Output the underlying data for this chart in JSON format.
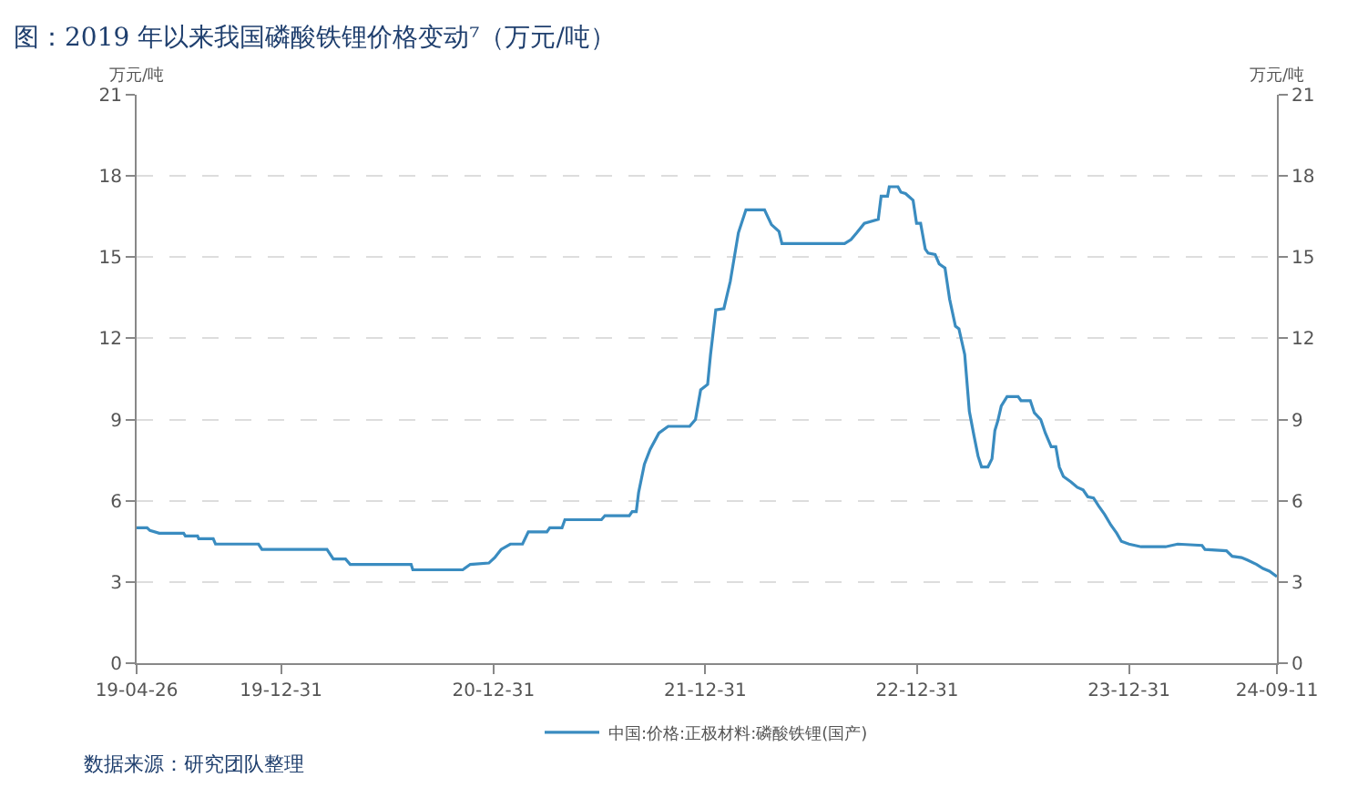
{
  "chart_data": {
    "type": "line",
    "title": "图：2019 年以来我国磷酸铁锂价格变动⁷（万元/吨）",
    "ylabel": "万元/吨",
    "y2label": "万元/吨",
    "x": [
      "2019-04-26",
      "2019-05-14",
      "2019-05-19",
      "2019-06-04",
      "2019-07-16",
      "2019-07-19",
      "2019-08-09",
      "2019-08-11",
      "2019-09-05",
      "2019-09-09",
      "2019-11-22",
      "2019-11-28",
      "2019-12-15",
      "2020-03-19",
      "2020-03-30",
      "2020-04-20",
      "2020-04-28",
      "2020-08-11",
      "2020-08-14",
      "2020-11-08",
      "2020-11-21",
      "2020-12-23",
      "2021-01-02",
      "2021-01-13",
      "2021-01-29",
      "2021-02-19",
      "2021-03-01",
      "2021-04-02",
      "2021-04-07",
      "2021-04-28",
      "2021-05-03",
      "2021-07-05",
      "2021-07-11",
      "2021-08-22",
      "2021-08-27",
      "2021-09-03",
      "2021-09-07",
      "2021-09-17",
      "2021-09-27",
      "2021-10-12",
      "2021-10-28",
      "2021-12-04",
      "2021-12-14",
      "2021-12-23",
      "2022-01-04",
      "2022-01-09",
      "2022-01-18",
      "2022-02-01",
      "2022-02-12",
      "2022-02-26",
      "2022-03-11",
      "2022-04-12",
      "2022-04-24",
      "2022-05-07",
      "2022-05-12",
      "2022-08-28",
      "2022-09-08",
      "2022-09-18",
      "2022-10-01",
      "2022-10-25",
      "2022-10-30",
      "2022-11-10",
      "2022-11-13",
      "2022-11-28",
      "2022-12-03",
      "2022-12-11",
      "2022-12-24",
      "2022-12-30",
      "2023-01-06",
      "2023-01-14",
      "2023-01-19",
      "2023-01-31",
      "2023-02-07",
      "2023-02-17",
      "2023-02-25",
      "2023-03-07",
      "2023-03-13",
      "2023-03-23",
      "2023-03-31",
      "2023-04-08",
      "2023-04-15",
      "2023-04-21",
      "2023-05-02",
      "2023-05-09",
      "2023-05-14",
      "2023-05-19",
      "2023-05-25",
      "2023-06-04",
      "2023-06-23",
      "2023-06-28",
      "2023-07-14",
      "2023-07-21",
      "2023-08-01",
      "2023-08-09",
      "2023-08-19",
      "2023-08-27",
      "2023-09-02",
      "2023-09-09",
      "2023-09-22",
      "2023-10-03",
      "2023-10-13",
      "2023-10-21",
      "2023-10-31",
      "2023-11-09",
      "2023-11-19",
      "2023-11-30",
      "2023-12-10",
      "2023-12-18",
      "2023-12-31",
      "2024-01-21",
      "2024-03-03",
      "2024-03-24",
      "2024-05-05",
      "2024-05-10",
      "2024-06-16",
      "2024-06-26",
      "2024-07-12",
      "2024-07-23",
      "2024-08-07",
      "2024-08-18",
      "2024-08-29",
      "2024-09-11"
    ],
    "series": [
      {
        "name": "中国:价格:正极材料:磷酸铁锂(国产)",
        "color": "#3a8cc0",
        "values": [
          5.0,
          5.0,
          4.9,
          4.8,
          4.8,
          4.7,
          4.7,
          4.6,
          4.6,
          4.4,
          4.4,
          4.2,
          4.2,
          4.2,
          3.85,
          3.85,
          3.65,
          3.65,
          3.45,
          3.45,
          3.65,
          3.7,
          3.9,
          4.2,
          4.4,
          4.4,
          4.85,
          4.85,
          5.0,
          5.0,
          5.3,
          5.3,
          5.45,
          5.45,
          5.6,
          5.6,
          6.3,
          7.35,
          7.9,
          8.5,
          8.75,
          8.75,
          9.0,
          10.1,
          10.3,
          11.4,
          13.05,
          13.1,
          14.1,
          15.9,
          16.75,
          16.75,
          16.2,
          15.95,
          15.5,
          15.5,
          15.65,
          15.9,
          16.25,
          16.4,
          17.25,
          17.25,
          17.6,
          17.6,
          17.4,
          17.35,
          17.1,
          16.25,
          16.25,
          15.3,
          15.15,
          15.1,
          14.75,
          14.6,
          13.45,
          12.45,
          12.35,
          11.4,
          9.3,
          8.4,
          7.65,
          7.25,
          7.25,
          7.55,
          8.6,
          8.95,
          9.5,
          9.85,
          9.85,
          9.7,
          9.7,
          9.25,
          9.0,
          8.5,
          8.0,
          8.0,
          7.25,
          6.9,
          6.7,
          6.5,
          6.4,
          6.15,
          6.1,
          5.8,
          5.5,
          5.1,
          4.8,
          4.5,
          4.4,
          4.3,
          4.3,
          4.4,
          4.35,
          4.2,
          4.15,
          3.95,
          3.9,
          3.8,
          3.65,
          3.5,
          3.4,
          3.2
        ]
      }
    ],
    "xlim": [
      "2019-04-26",
      "2024-09-11"
    ],
    "xticks": [
      {
        "value": "2019-04-26",
        "label": "19-04-26"
      },
      {
        "value": "2019-12-31",
        "label": "19-12-31"
      },
      {
        "value": "2020-12-31",
        "label": "20-12-31"
      },
      {
        "value": "2021-12-31",
        "label": "21-12-31"
      },
      {
        "value": "2022-12-31",
        "label": "22-12-31"
      },
      {
        "value": "2023-12-31",
        "label": "23-12-31"
      },
      {
        "value": "2024-09-11",
        "label": "24-09-11"
      }
    ],
    "ylim": [
      0,
      21
    ],
    "yticks": [
      0,
      3,
      6,
      9,
      12,
      15,
      18,
      21
    ],
    "y2lim": [
      0,
      21
    ],
    "y2ticks": [
      0,
      3,
      6,
      9,
      12,
      15,
      18,
      21
    ],
    "grid": "y",
    "legend": "bottom",
    "marker": "none",
    "line_style": "solid",
    "annotations": [
      "数据来源：研究团队整理"
    ]
  }
}
